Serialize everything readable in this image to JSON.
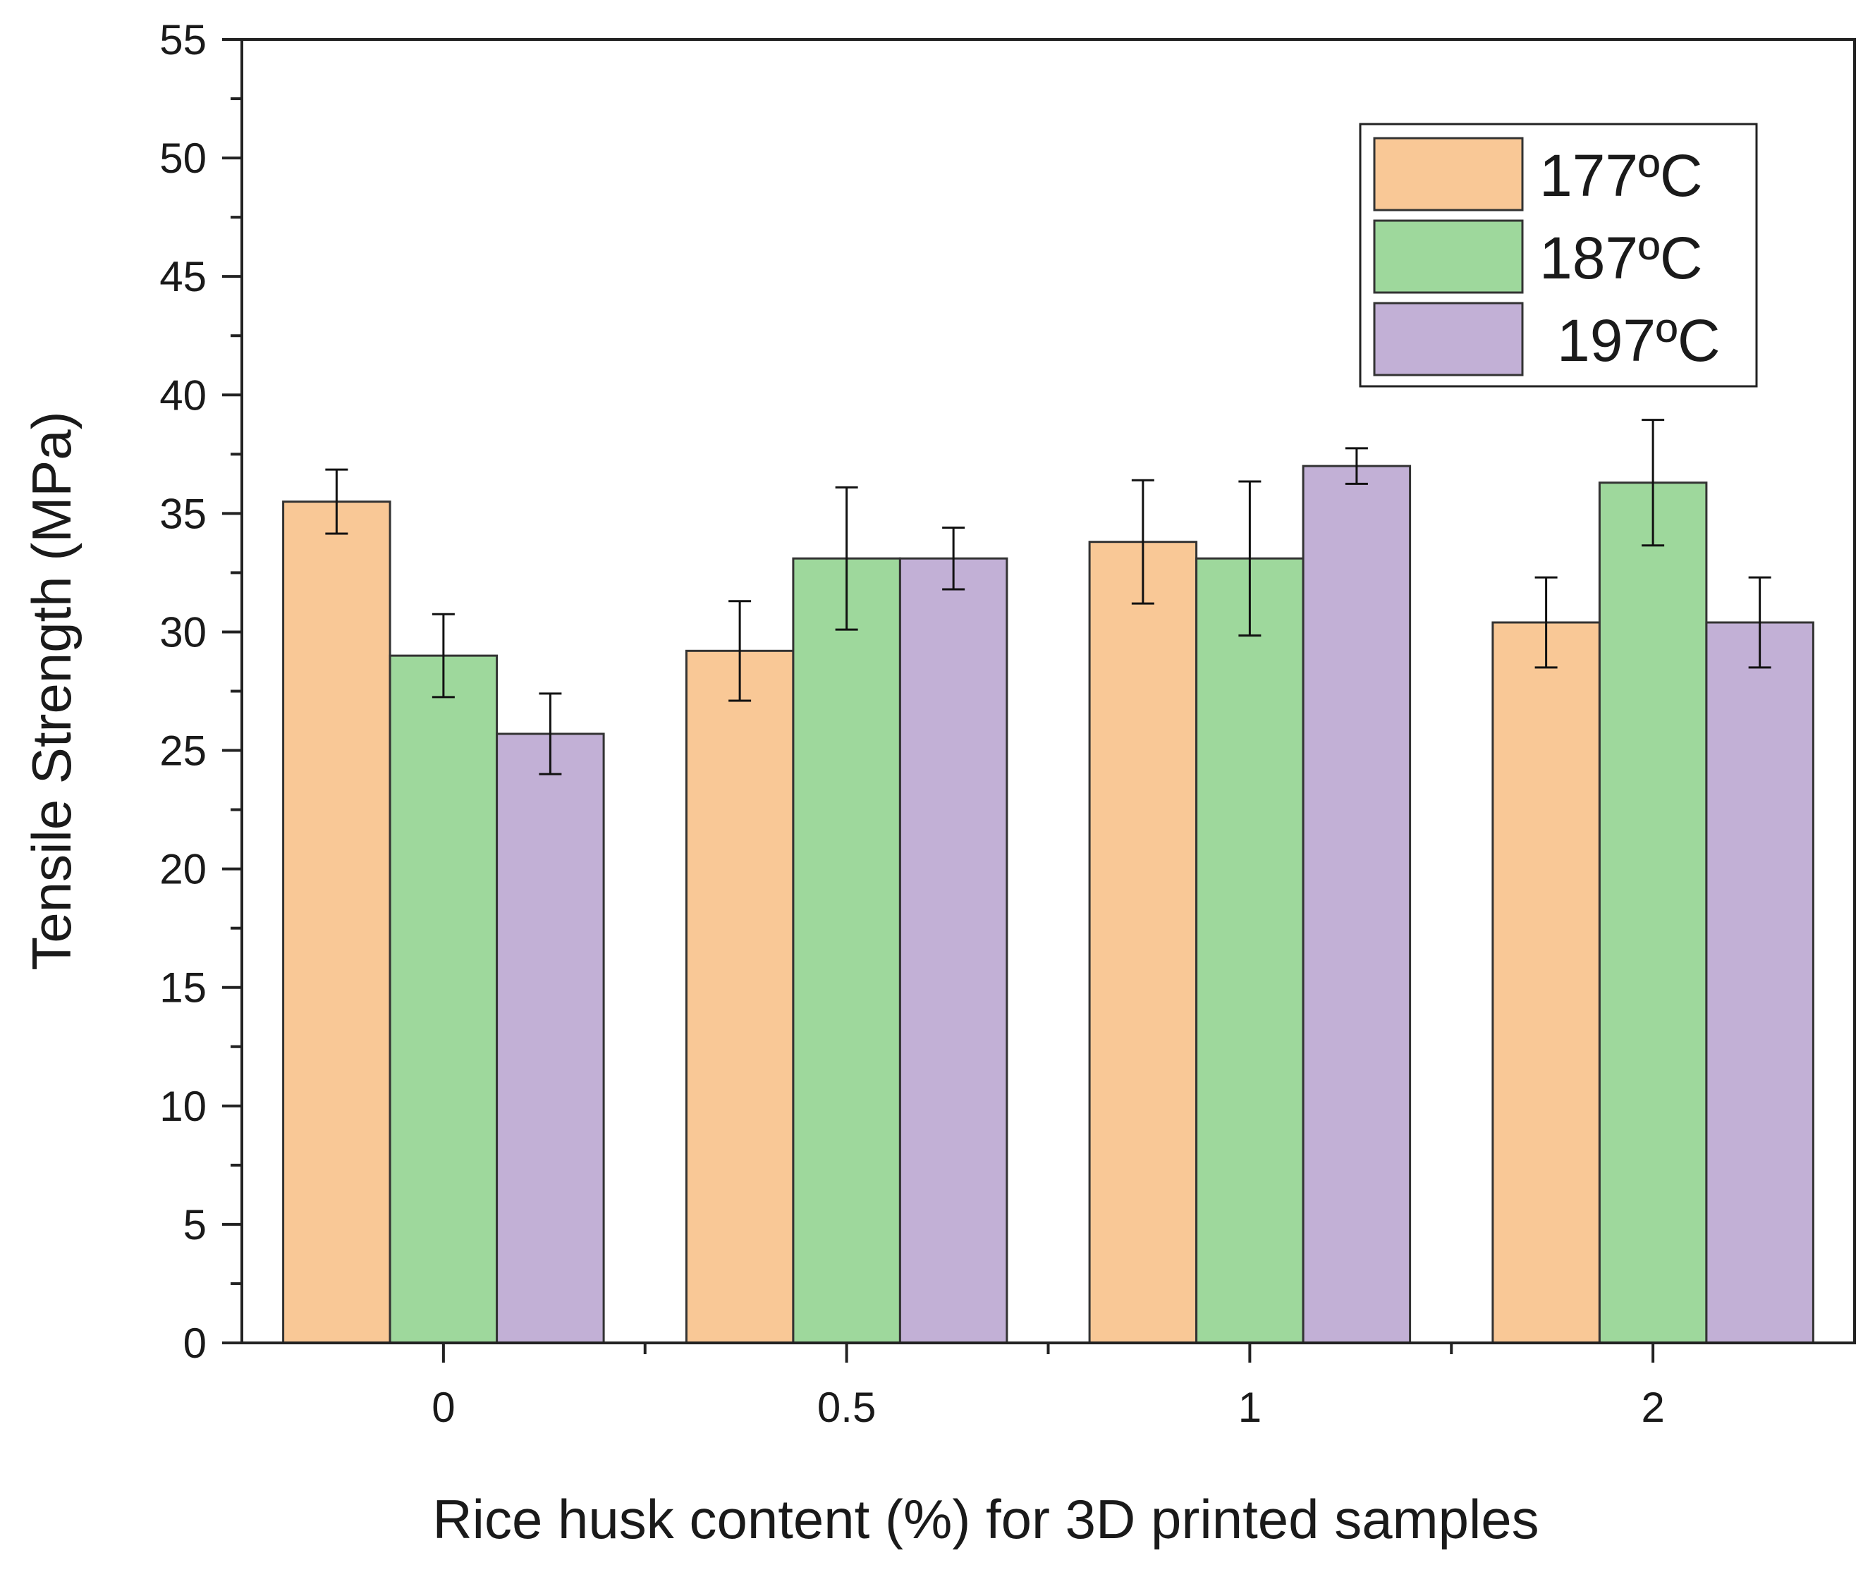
{
  "chart_data": {
    "type": "bar",
    "title": "",
    "xlabel": "Rice husk content (%) for 3D printed samples",
    "ylabel": "Tensile Strength (MPa)",
    "ylim": [
      0,
      55
    ],
    "yticks": [
      0,
      5,
      10,
      15,
      20,
      25,
      30,
      35,
      40,
      45,
      50,
      55
    ],
    "ytick_labels": [
      "0",
      "5",
      "10",
      "15",
      "20",
      "25",
      "30",
      "35",
      "40",
      "45",
      "50",
      "55"
    ],
    "categories": [
      "0",
      "0.5",
      "1",
      "2"
    ],
    "grid": false,
    "legend_position": "top-right",
    "series": [
      {
        "name": "177ºC",
        "color": "#f9c896",
        "values": [
          35.5,
          29.2,
          33.8,
          30.4
        ],
        "errors": [
          1.35,
          2.1,
          2.6,
          1.9
        ]
      },
      {
        "name": "187ºC",
        "color": "#9ed89c",
        "values": [
          29.0,
          33.1,
          33.1,
          36.3
        ],
        "errors": [
          1.75,
          3.0,
          3.25,
          2.65
        ]
      },
      {
        "name": "197ºC",
        "color": "#c2b0d6",
        "values": [
          25.7,
          33.1,
          37.0,
          30.4
        ],
        "errors": [
          1.7,
          1.3,
          0.75,
          1.9
        ]
      }
    ]
  }
}
